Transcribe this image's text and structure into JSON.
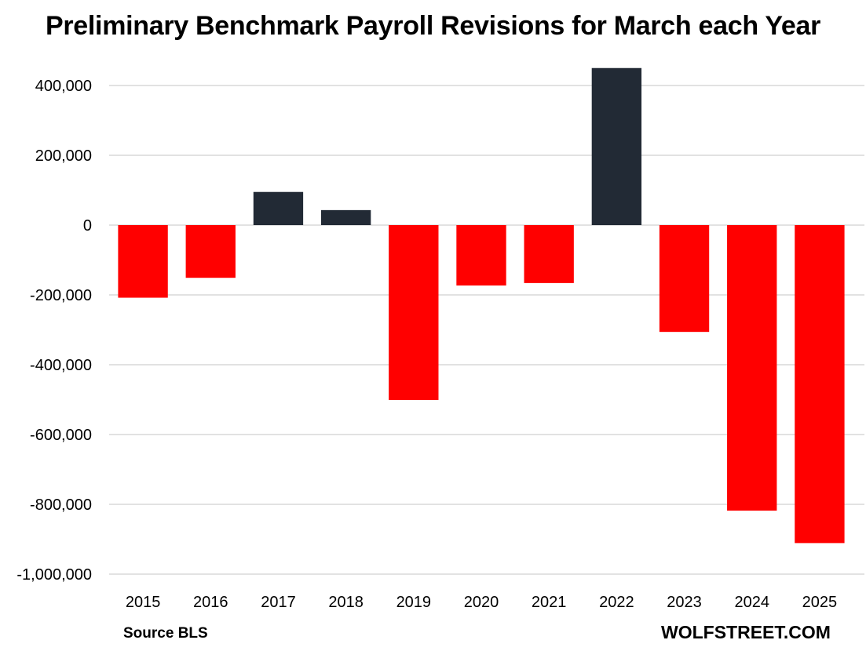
{
  "chart_data": {
    "type": "bar",
    "title": "Preliminary Benchmark Payroll Revisions for March each Year",
    "categories": [
      "2015",
      "2016",
      "2017",
      "2018",
      "2019",
      "2020",
      "2021",
      "2022",
      "2023",
      "2024",
      "2025"
    ],
    "values": [
      -208000,
      -151000,
      95000,
      43000,
      -501000,
      -173000,
      -166000,
      450000,
      -306000,
      -818000,
      -911000
    ],
    "ylim": [
      -1000000,
      450000
    ],
    "yticks": [
      400000,
      200000,
      0,
      -200000,
      -400000,
      -600000,
      -800000,
      -1000000
    ],
    "ytick_labels": [
      "400,000",
      "200,000",
      "0",
      "-200,000",
      "-400,000",
      "-600,000",
      "-800,000",
      "-1,000,000"
    ],
    "grid": true,
    "colors": {
      "positive": "#222a35",
      "negative": "#ff0000",
      "grid": "#d9d9d9"
    }
  },
  "footer": {
    "source": "Source BLS",
    "brand": "WOLFSTREET.COM"
  }
}
